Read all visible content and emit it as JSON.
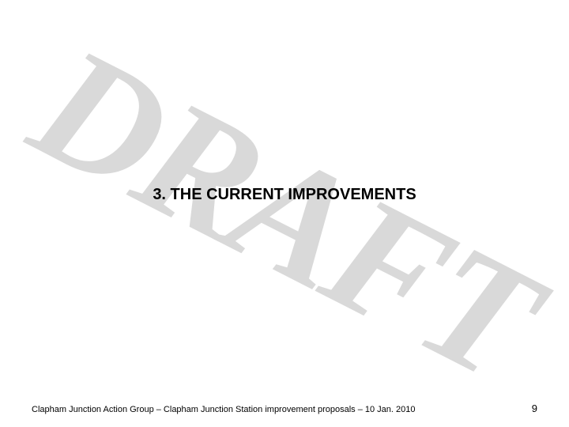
{
  "watermark": {
    "text": "DRAFT",
    "color": "#d9d9d9",
    "rotation_deg": 27,
    "font_style": "italic",
    "font_weight": "bold"
  },
  "heading": {
    "number": "3.",
    "title": "THE CURRENT IMPROVEMENTS",
    "full": "3. THE CURRENT IMPROVEMENTS",
    "font_size": 20,
    "font_weight": "bold",
    "color": "#000000"
  },
  "footer": {
    "text": "Clapham Junction Action Group – Clapham Junction Station improvement proposals – 10 Jan. 2010",
    "font_size": 11,
    "color": "#000000"
  },
  "page_number": {
    "value": "9",
    "font_size": 13,
    "color": "#000000"
  },
  "background_color": "#ffffff"
}
